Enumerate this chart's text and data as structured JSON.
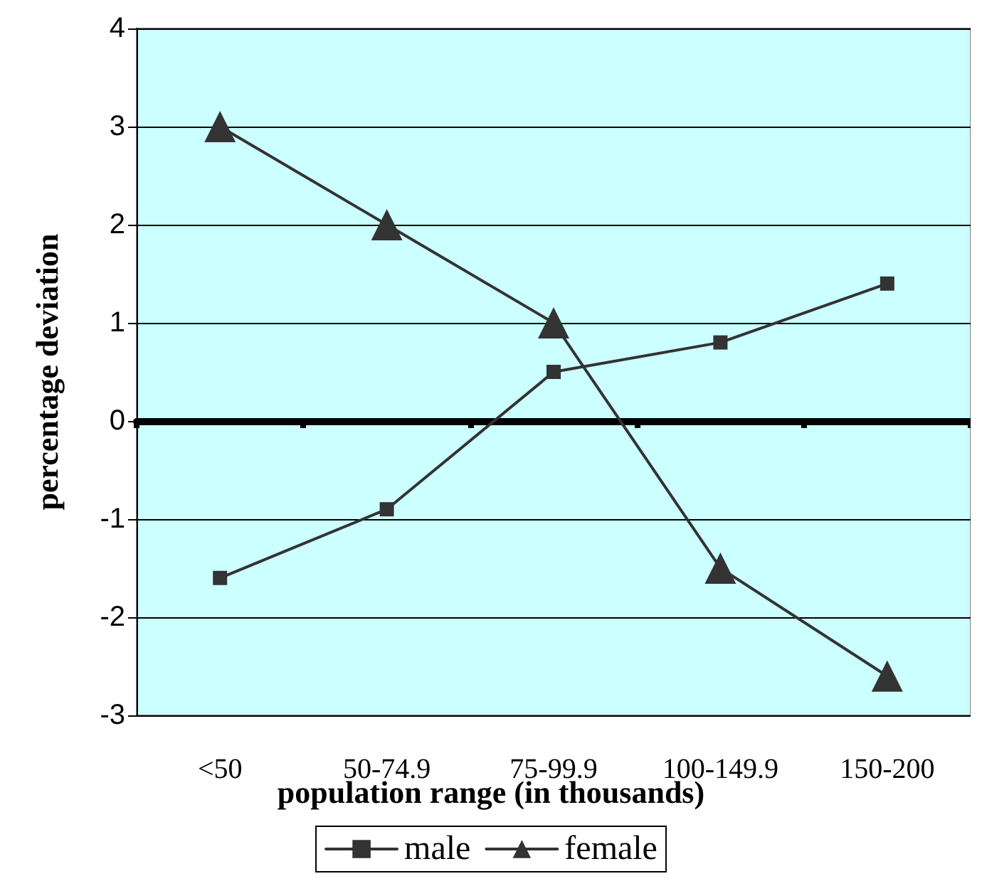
{
  "chart_data": {
    "type": "line",
    "xlabel": "population range (in thousands)",
    "ylabel": "percentage deviation",
    "categories": [
      "<50",
      "50-74.9",
      "75-99.9",
      "100-149.9",
      "150-200"
    ],
    "series": [
      {
        "name": "male",
        "color": "#333333",
        "marker": "square",
        "values": [
          -1.6,
          -0.9,
          0.5,
          0.8,
          1.4
        ]
      },
      {
        "name": "female",
        "color": "#333333",
        "marker": "triangle",
        "values": [
          3,
          2,
          1,
          -1.5,
          -2.6
        ]
      }
    ],
    "ylim": [
      -3,
      4
    ],
    "yticks": [
      -3,
      -2,
      -1,
      0,
      1,
      2,
      3,
      4
    ],
    "grid": "y",
    "legend": "bottom",
    "line_style": "solid"
  }
}
